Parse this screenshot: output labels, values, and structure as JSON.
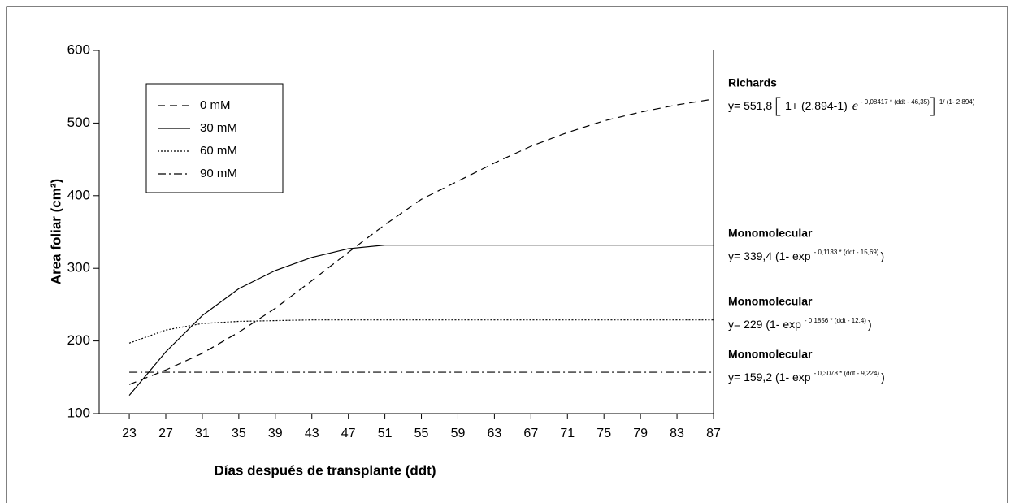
{
  "chart_data": {
    "type": "line",
    "x_label": "Días después de transplante (ddt)",
    "y_label": "Area foliar (cm²)",
    "x": [
      23,
      27,
      31,
      35,
      39,
      43,
      47,
      51,
      55,
      59,
      63,
      67,
      71,
      75,
      79,
      83,
      87
    ],
    "xlim": [
      19.7,
      87
    ],
    "xticks": [
      23,
      27,
      31,
      35,
      39,
      43,
      47,
      51,
      55,
      59,
      63,
      67,
      71,
      75,
      79,
      83,
      87
    ],
    "ylim": [
      100,
      600
    ],
    "yticks": [
      100,
      200,
      300,
      400,
      500,
      600
    ],
    "series": [
      {
        "name": "0 mM",
        "color": "#000000",
        "dash": "9,6",
        "values": [
          140,
          160,
          183,
          212,
          245,
          283,
          322,
          360,
          395,
          420,
          445,
          468,
          487,
          503,
          515,
          525,
          533
        ]
      },
      {
        "name": "30 mM",
        "color": "#000000",
        "dash": "none",
        "values": [
          125,
          185,
          235,
          272,
          297,
          315,
          327,
          332,
          332,
          332,
          332,
          332,
          332,
          332,
          332,
          332,
          332
        ]
      },
      {
        "name": "60 mM",
        "color": "#000000",
        "dash": "2,2",
        "values": [
          197,
          215,
          224,
          227,
          228,
          229,
          229,
          229,
          229,
          229,
          229,
          229,
          229,
          229,
          229,
          229,
          229
        ]
      },
      {
        "name": "90 mM",
        "color": "#000000",
        "dash": "10,4,2,4",
        "values": [
          157,
          157,
          157,
          157,
          157,
          157,
          157,
          157,
          157,
          157,
          157,
          157,
          157,
          157,
          157,
          157,
          157
        ]
      }
    ],
    "annotations": [
      {
        "label": "Richards",
        "equation": [
          "y= 551,8",
          "1+ (2,894-1)",
          "e",
          "- 0,08417 * (ddt - 46,35)",
          "1/ (1- 2,894)"
        ]
      },
      {
        "label": "Monomolecular",
        "equation": [
          "y= 339,4 (1- exp",
          "- 0,1133 * (ddt - 15,69)",
          ")"
        ]
      },
      {
        "label": "Monomolecular",
        "equation": [
          "y= 229 (1- exp",
          "- 0,1856 * (ddt - 12,4)",
          ")"
        ]
      },
      {
        "label": "Monomolecular",
        "equation": [
          "y= 159,2 (1- exp",
          "- 0,3078 * (ddt - 9,224)",
          ")"
        ]
      }
    ]
  }
}
